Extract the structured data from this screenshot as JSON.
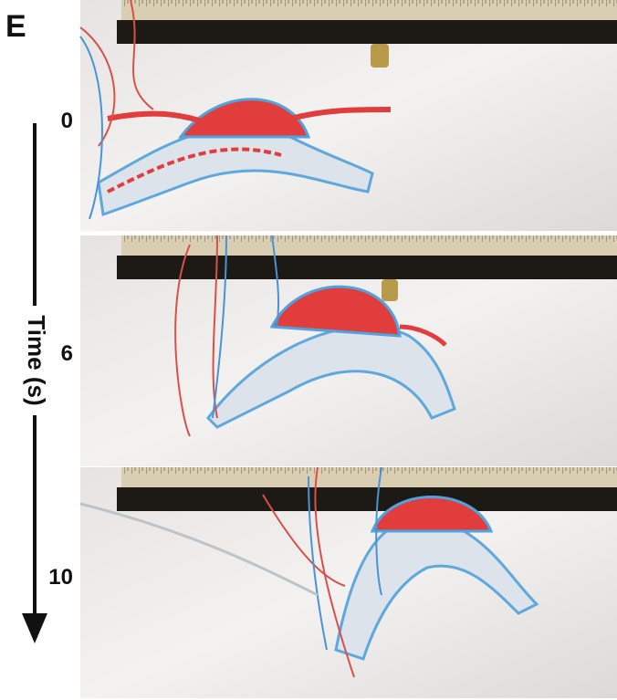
{
  "panel_label": "E",
  "axis_label": "Time (s)",
  "frames": [
    {
      "time_label": "0"
    },
    {
      "time_label": "6"
    },
    {
      "time_label": "10"
    }
  ]
}
